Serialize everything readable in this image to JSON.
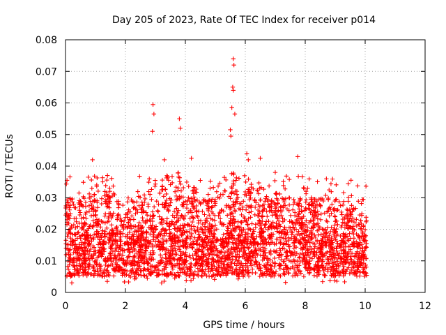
{
  "chart_data": {
    "type": "scatter",
    "title": "Day 205 of 2023, Rate Of TEC Index for receiver p014",
    "xlabel": "GPS time / hours",
    "ylabel": "ROTI / TECUs",
    "xlim": [
      0,
      12
    ],
    "ylim": [
      0,
      0.08
    ],
    "xticks": [
      0,
      2,
      4,
      6,
      8,
      10,
      12
    ],
    "xtick_labels": [
      "0",
      "2",
      "4",
      "6",
      "8",
      "10",
      "12"
    ],
    "yticks": [
      0,
      0.01,
      0.02,
      0.03,
      0.04,
      0.05,
      0.06,
      0.07,
      0.08
    ],
    "ytick_labels": [
      "0",
      "0.01",
      "0.02",
      "0.03",
      "0.04",
      "0.05",
      "0.06",
      "0.07",
      "0.08"
    ],
    "grid": true,
    "marker": "plus",
    "color": "#ff0000",
    "series": [
      {
        "name": "ROTI",
        "description": "Dense cloud of ~10000 ROTI samples between 0 and 10 h, mostly 0.005-0.025 TECU/s",
        "x_range": [
          0,
          10.05
        ],
        "band_low": 0.005,
        "band_high": 0.025,
        "peaks": [
          {
            "x": 2.92,
            "y": 0.0595
          },
          {
            "x": 2.95,
            "y": 0.0565
          },
          {
            "x": 2.9,
            "y": 0.051
          },
          {
            "x": 3.8,
            "y": 0.055
          },
          {
            "x": 3.83,
            "y": 0.052
          },
          {
            "x": 3.3,
            "y": 0.042
          },
          {
            "x": 4.2,
            "y": 0.0425
          },
          {
            "x": 5.6,
            "y": 0.074
          },
          {
            "x": 5.62,
            "y": 0.072
          },
          {
            "x": 5.58,
            "y": 0.065
          },
          {
            "x": 5.6,
            "y": 0.064
          },
          {
            "x": 5.55,
            "y": 0.0585
          },
          {
            "x": 5.65,
            "y": 0.0565
          },
          {
            "x": 5.5,
            "y": 0.0515
          },
          {
            "x": 5.52,
            "y": 0.0495
          },
          {
            "x": 6.05,
            "y": 0.044
          },
          {
            "x": 6.1,
            "y": 0.042
          },
          {
            "x": 6.5,
            "y": 0.0425
          },
          {
            "x": 7.75,
            "y": 0.043
          },
          {
            "x": 0.9,
            "y": 0.042
          },
          {
            "x": 7.0,
            "y": 0.038
          },
          {
            "x": 0.05,
            "y": 0.0355
          },
          {
            "x": 1.4,
            "y": 0.037
          }
        ]
      }
    ]
  }
}
